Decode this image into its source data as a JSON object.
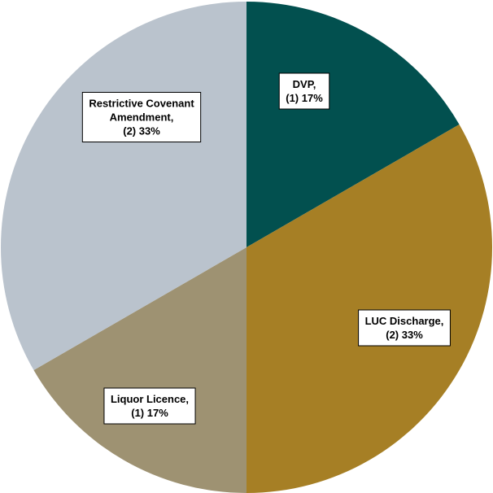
{
  "chart_data": {
    "type": "pie",
    "title": "",
    "start_angle_deg": 0,
    "direction": "clockwise",
    "slices": [
      {
        "name": "DVP",
        "count": "(1)",
        "percent": "17%",
        "value": 1,
        "color": "#02504F",
        "label_lines": [
          "DVP,",
          "(1) 17%"
        ]
      },
      {
        "name": "LUC Discharge",
        "count": "(2)",
        "percent": "33%",
        "value": 2,
        "color": "#A67F25",
        "label_lines": [
          "LUC Discharge,",
          "(2) 33%"
        ]
      },
      {
        "name": "Liquor Licence",
        "count": "(1)",
        "percent": "17%",
        "value": 1,
        "color": "#9E9272",
        "label_lines": [
          "Liquor Licence,",
          "(1) 17%"
        ]
      },
      {
        "name": "Restrictive Covenant Amendment",
        "count": "(2)",
        "percent": "33%",
        "value": 2,
        "color": "#BAC3CD",
        "label_lines": [
          "Restrictive Covenant",
          "Amendment,",
          "(2) 33%"
        ]
      }
    ]
  }
}
